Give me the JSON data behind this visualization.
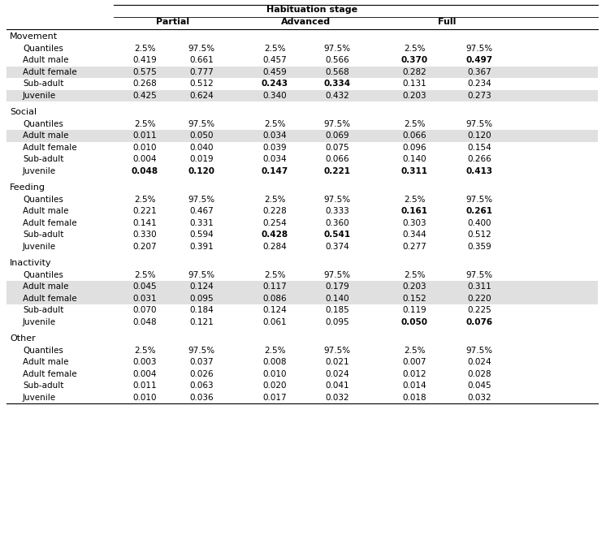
{
  "title_main": "Habituation stage",
  "col_headers": [
    "Partial",
    "Advanced",
    "Full"
  ],
  "sections": [
    {
      "name": "Movement",
      "rows": [
        {
          "label": "Quantiles",
          "vals": [
            "2.5%",
            "97.5%",
            "2.5%",
            "97.5%",
            "2.5%",
            "97.5%"
          ],
          "bold": [
            false,
            false,
            false,
            false,
            false,
            false
          ],
          "shade": false
        },
        {
          "label": "Adult male",
          "vals": [
            "0.419",
            "0.661",
            "0.457",
            "0.566",
            "0.370",
            "0.497"
          ],
          "bold": [
            false,
            false,
            false,
            false,
            true,
            true
          ],
          "shade": false
        },
        {
          "label": "Adult female",
          "vals": [
            "0.575",
            "0.777",
            "0.459",
            "0.568",
            "0.282",
            "0.367"
          ],
          "bold": [
            false,
            false,
            false,
            false,
            false,
            false
          ],
          "shade": true
        },
        {
          "label": "Sub-adult",
          "vals": [
            "0.268",
            "0.512",
            "0.243",
            "0.334",
            "0.131",
            "0.234"
          ],
          "bold": [
            false,
            false,
            true,
            true,
            false,
            false
          ],
          "shade": false
        },
        {
          "label": "Juvenile",
          "vals": [
            "0.425",
            "0.624",
            "0.340",
            "0.432",
            "0.203",
            "0.273"
          ],
          "bold": [
            false,
            false,
            false,
            false,
            false,
            false
          ],
          "shade": true
        }
      ]
    },
    {
      "name": "Social",
      "rows": [
        {
          "label": "Quantiles",
          "vals": [
            "2.5%",
            "97.5%",
            "2.5%",
            "97.5%",
            "2.5%",
            "97.5%"
          ],
          "bold": [
            false,
            false,
            false,
            false,
            false,
            false
          ],
          "shade": false
        },
        {
          "label": "Adult male",
          "vals": [
            "0.011",
            "0.050",
            "0.034",
            "0.069",
            "0.066",
            "0.120"
          ],
          "bold": [
            false,
            false,
            false,
            false,
            false,
            false
          ],
          "shade": true
        },
        {
          "label": "Adult female",
          "vals": [
            "0.010",
            "0.040",
            "0.039",
            "0.075",
            "0.096",
            "0.154"
          ],
          "bold": [
            false,
            false,
            false,
            false,
            false,
            false
          ],
          "shade": false
        },
        {
          "label": "Sub-adult",
          "vals": [
            "0.004",
            "0.019",
            "0.034",
            "0.066",
            "0.140",
            "0.266"
          ],
          "bold": [
            false,
            false,
            false,
            false,
            false,
            false
          ],
          "shade": false
        },
        {
          "label": "Juvenile",
          "vals": [
            "0.048",
            "0.120",
            "0.147",
            "0.221",
            "0.311",
            "0.413"
          ],
          "bold": [
            true,
            true,
            true,
            true,
            true,
            true
          ],
          "shade": false
        }
      ]
    },
    {
      "name": "Feeding",
      "rows": [
        {
          "label": "Quantiles",
          "vals": [
            "2.5%",
            "97.5%",
            "2.5%",
            "97.5%",
            "2.5%",
            "97.5%"
          ],
          "bold": [
            false,
            false,
            false,
            false,
            false,
            false
          ],
          "shade": false
        },
        {
          "label": "Adult male",
          "vals": [
            "0.221",
            "0.467",
            "0.228",
            "0.333",
            "0.161",
            "0.261"
          ],
          "bold": [
            false,
            false,
            false,
            false,
            true,
            true
          ],
          "shade": false
        },
        {
          "label": "Adult female",
          "vals": [
            "0.141",
            "0.331",
            "0.254",
            "0.360",
            "0.303",
            "0.400"
          ],
          "bold": [
            false,
            false,
            false,
            false,
            false,
            false
          ],
          "shade": false
        },
        {
          "label": "Sub-adult",
          "vals": [
            "0.330",
            "0.594",
            "0.428",
            "0.541",
            "0.344",
            "0.512"
          ],
          "bold": [
            false,
            false,
            true,
            true,
            false,
            false
          ],
          "shade": false
        },
        {
          "label": "Juvenile",
          "vals": [
            "0.207",
            "0.391",
            "0.284",
            "0.374",
            "0.277",
            "0.359"
          ],
          "bold": [
            false,
            false,
            false,
            false,
            false,
            false
          ],
          "shade": false
        }
      ]
    },
    {
      "name": "Inactivity",
      "rows": [
        {
          "label": "Quantiles",
          "vals": [
            "2.5%",
            "97.5%",
            "2.5%",
            "97.5%",
            "2.5%",
            "97.5%"
          ],
          "bold": [
            false,
            false,
            false,
            false,
            false,
            false
          ],
          "shade": false
        },
        {
          "label": "Adult male",
          "vals": [
            "0.045",
            "0.124",
            "0.117",
            "0.179",
            "0.203",
            "0.311"
          ],
          "bold": [
            false,
            false,
            false,
            false,
            false,
            false
          ],
          "shade": true
        },
        {
          "label": "Adult female",
          "vals": [
            "0.031",
            "0.095",
            "0.086",
            "0.140",
            "0.152",
            "0.220"
          ],
          "bold": [
            false,
            false,
            false,
            false,
            false,
            false
          ],
          "shade": true
        },
        {
          "label": "Sub-adult",
          "vals": [
            "0.070",
            "0.184",
            "0.124",
            "0.185",
            "0.119",
            "0.225"
          ],
          "bold": [
            false,
            false,
            false,
            false,
            false,
            false
          ],
          "shade": false
        },
        {
          "label": "Juvenile",
          "vals": [
            "0.048",
            "0.121",
            "0.061",
            "0.095",
            "0.050",
            "0.076"
          ],
          "bold": [
            false,
            false,
            false,
            false,
            true,
            true
          ],
          "shade": false
        }
      ]
    },
    {
      "name": "Other",
      "rows": [
        {
          "label": "Quantiles",
          "vals": [
            "2.5%",
            "97.5%",
            "2.5%",
            "97.5%",
            "2.5%",
            "97.5%"
          ],
          "bold": [
            false,
            false,
            false,
            false,
            false,
            false
          ],
          "shade": false
        },
        {
          "label": "Adult male",
          "vals": [
            "0.003",
            "0.037",
            "0.008",
            "0.021",
            "0.007",
            "0.024"
          ],
          "bold": [
            false,
            false,
            false,
            false,
            false,
            false
          ],
          "shade": false
        },
        {
          "label": "Adult female",
          "vals": [
            "0.004",
            "0.026",
            "0.010",
            "0.024",
            "0.012",
            "0.028"
          ],
          "bold": [
            false,
            false,
            false,
            false,
            false,
            false
          ],
          "shade": false
        },
        {
          "label": "Sub-adult",
          "vals": [
            "0.011",
            "0.063",
            "0.020",
            "0.041",
            "0.014",
            "0.045"
          ],
          "bold": [
            false,
            false,
            false,
            false,
            false,
            false
          ],
          "shade": false
        },
        {
          "label": "Juvenile",
          "vals": [
            "0.010",
            "0.036",
            "0.017",
            "0.032",
            "0.018",
            "0.032"
          ],
          "bold": [
            false,
            false,
            false,
            false,
            false,
            false
          ],
          "shade": false
        }
      ]
    }
  ],
  "shade_color": "#e0e0e0",
  "bg_color": "#ffffff",
  "font_size": 7.5,
  "header_font_size": 8.0,
  "section_font_size": 8.0
}
